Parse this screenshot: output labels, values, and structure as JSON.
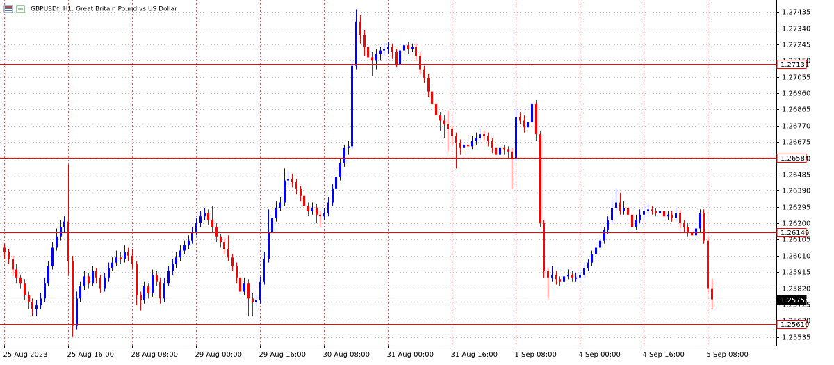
{
  "chart_data": {
    "type": "candlestick",
    "title": "GBPUSDf, H1:  Great Britain Pound vs US Dollar",
    "up_color": "#0000ff",
    "down_color": "#ff0000",
    "grid": true,
    "ylim": [
      1.25485,
      1.27505
    ],
    "yticks": [
      1.27435,
      {
        "value": 1.2734,
        "label": "1.27340"
      },
      1.27245,
      {
        "value": 1.2715,
        "label": "1.27150"
      },
      1.27055,
      {
        "value": 1.2696,
        "label": "1.26960"
      },
      1.26865,
      {
        "value": 1.2677,
        "label": "1.26770"
      },
      1.26675,
      {
        "value": 1.2658,
        "label": "1.26580"
      },
      1.26485,
      {
        "value": 1.2639,
        "label": "1.26390"
      },
      1.26295,
      {
        "value": 1.262,
        "label": "1.26200"
      },
      1.26105,
      {
        "value": 1.2601,
        "label": "1.26010"
      },
      1.25915,
      {
        "value": 1.2582,
        "label": "1.25820"
      },
      1.25725,
      {
        "value": 1.2563,
        "label": "1.25630"
      },
      1.25535
    ],
    "xticks": [
      "25 Aug 2023",
      "25 Aug 16:00",
      "28 Aug 08:00",
      "29 Aug 00:00",
      "29 Aug 16:00",
      "30 Aug 08:00",
      "31 Aug 00:00",
      "31 Aug 16:00",
      "1 Sep 08:00",
      "4 Sep 00:00",
      "4 Sep 16:00",
      "5 Sep 08:00"
    ],
    "xtick_every": 16,
    "levels": [
      {
        "value": 1.27131,
        "color": "#ff0000"
      },
      {
        "value": 1.26584,
        "color": "#ff0000"
      },
      {
        "value": 1.26149,
        "color": "#ff0000"
      },
      {
        "value": 1.25755,
        "color": "#808080"
      },
      {
        "value": 1.2561,
        "label": "1.25610",
        "color": "#ff0000"
      }
    ],
    "candles": [
      [
        1.2606,
        1.2608,
        1.2599,
        1.2603
      ],
      [
        1.2603,
        1.2605,
        1.2596,
        1.2599
      ],
      [
        1.2599,
        1.2601,
        1.259,
        1.2593
      ],
      [
        1.2593,
        1.2596,
        1.2585,
        1.2588
      ],
      [
        1.2588,
        1.259,
        1.2582,
        1.2585
      ],
      [
        1.2585,
        1.2587,
        1.2575,
        1.2578
      ],
      [
        1.2578,
        1.258,
        1.257,
        1.2574
      ],
      [
        1.2574,
        1.2576,
        1.2566,
        1.257
      ],
      [
        1.257,
        1.2575,
        1.2566,
        1.2572
      ],
      [
        1.2572,
        1.2579,
        1.257,
        1.2576
      ],
      [
        1.2576,
        1.2588,
        1.2574,
        1.2585
      ],
      [
        1.2585,
        1.2598,
        1.2583,
        1.2595
      ],
      [
        1.2595,
        1.2609,
        1.2593,
        1.2606
      ],
      [
        1.2606,
        1.2617,
        1.2604,
        1.2612
      ],
      [
        1.2612,
        1.2622,
        1.261,
        1.2618
      ],
      [
        1.2618,
        1.2624,
        1.2615,
        1.2621
      ],
      [
        1.2621,
        1.2654,
        1.259,
        1.2598
      ],
      [
        1.2598,
        1.2601,
        1.25535,
        1.256
      ],
      [
        1.256,
        1.258,
        1.2558,
        1.2576
      ],
      [
        1.2576,
        1.2586,
        1.2574,
        1.2583
      ],
      [
        1.2583,
        1.2592,
        1.2581,
        1.2589
      ],
      [
        1.2589,
        1.2591,
        1.2582,
        1.2585
      ],
      [
        1.2585,
        1.2595,
        1.2583,
        1.2592
      ],
      [
        1.2592,
        1.2594,
        1.2585,
        1.2588
      ],
      [
        1.2588,
        1.259,
        1.2579,
        1.2582
      ],
      [
        1.2582,
        1.2591,
        1.258,
        1.2588
      ],
      [
        1.2588,
        1.2597,
        1.2586,
        1.2594
      ],
      [
        1.2594,
        1.26,
        1.2592,
        1.2597
      ],
      [
        1.2597,
        1.2604,
        1.2595,
        1.26
      ],
      [
        1.26,
        1.2603,
        1.2596,
        1.2599
      ],
      [
        1.2599,
        1.2607,
        1.2597,
        1.2603
      ],
      [
        1.2603,
        1.2606,
        1.2598,
        1.2601
      ],
      [
        1.2601,
        1.2605,
        1.2593,
        1.2596
      ],
      [
        1.2596,
        1.2598,
        1.2572,
        1.2578
      ],
      [
        1.2578,
        1.258,
        1.2569,
        1.2575
      ],
      [
        1.2575,
        1.2586,
        1.2573,
        1.2583
      ],
      [
        1.2583,
        1.2585,
        1.2576,
        1.2579
      ],
      [
        1.2579,
        1.2593,
        1.2577,
        1.259
      ],
      [
        1.259,
        1.2592,
        1.2583,
        1.2586
      ],
      [
        1.2586,
        1.2588,
        1.2573,
        1.2576
      ],
      [
        1.2576,
        1.2588,
        1.2574,
        1.2585
      ],
      [
        1.2585,
        1.2595,
        1.2583,
        1.2592
      ],
      [
        1.2592,
        1.2599,
        1.259,
        1.2596
      ],
      [
        1.2596,
        1.2603,
        1.2594,
        1.26
      ],
      [
        1.26,
        1.2607,
        1.2598,
        1.2604
      ],
      [
        1.2604,
        1.261,
        1.2602,
        1.2607
      ],
      [
        1.2607,
        1.2613,
        1.2605,
        1.261
      ],
      [
        1.261,
        1.2618,
        1.2608,
        1.2615
      ],
      [
        1.2615,
        1.2623,
        1.2613,
        1.262
      ],
      [
        1.262,
        1.2627,
        1.2618,
        1.2624
      ],
      [
        1.2624,
        1.2629,
        1.2622,
        1.2626
      ],
      [
        1.2626,
        1.2628,
        1.2619,
        1.2622
      ],
      [
        1.2622,
        1.263,
        1.2615,
        1.2618
      ],
      [
        1.2618,
        1.262,
        1.2609,
        1.2612
      ],
      [
        1.2612,
        1.2614,
        1.2606,
        1.2609
      ],
      [
        1.2609,
        1.2611,
        1.2602,
        1.2605
      ],
      [
        1.2605,
        1.2613,
        1.2598,
        1.26
      ],
      [
        1.26,
        1.2602,
        1.2592,
        1.2595
      ],
      [
        1.2595,
        1.2597,
        1.2585,
        1.2588
      ],
      [
        1.2588,
        1.259,
        1.2577,
        1.258
      ],
      [
        1.258,
        1.2588,
        1.2578,
        1.2585
      ],
      [
        1.2585,
        1.2587,
        1.2566,
        1.2576
      ],
      [
        1.2576,
        1.2579,
        1.2566,
        1.2574
      ],
      [
        1.2574,
        1.2578,
        1.2572,
        1.2575
      ],
      [
        1.2575,
        1.2589,
        1.2573,
        1.2586
      ],
      [
        1.2586,
        1.2603,
        1.2584,
        1.2599
      ],
      [
        1.2599,
        1.2628,
        1.2597,
        1.2615
      ],
      [
        1.2615,
        1.2626,
        1.2613,
        1.2623
      ],
      [
        1.2623,
        1.2633,
        1.2621,
        1.2629
      ],
      [
        1.2629,
        1.2635,
        1.2627,
        1.2632
      ],
      [
        1.2632,
        1.2652,
        1.263,
        1.2645
      ],
      [
        1.2645,
        1.265,
        1.2642,
        1.2646
      ],
      [
        1.2646,
        1.2649,
        1.2641,
        1.2644
      ],
      [
        1.2644,
        1.2646,
        1.2637,
        1.264
      ],
      [
        1.264,
        1.2642,
        1.2633,
        1.2636
      ],
      [
        1.2636,
        1.2638,
        1.2627,
        1.263
      ],
      [
        1.263,
        1.2632,
        1.2624,
        1.2627
      ],
      [
        1.2627,
        1.2632,
        1.2625,
        1.2629
      ],
      [
        1.2629,
        1.2631,
        1.262,
        1.2625
      ],
      [
        1.2625,
        1.2627,
        1.2618,
        1.2624
      ],
      [
        1.2624,
        1.2629,
        1.2622,
        1.2626
      ],
      [
        1.2626,
        1.2635,
        1.2624,
        1.2632
      ],
      [
        1.2632,
        1.2643,
        1.263,
        1.264
      ],
      [
        1.264,
        1.265,
        1.2638,
        1.2647
      ],
      [
        1.2647,
        1.2658,
        1.2645,
        1.2655
      ],
      [
        1.2655,
        1.2666,
        1.2653,
        1.2664
      ],
      [
        1.2664,
        1.2668,
        1.266,
        1.2665
      ],
      [
        1.2665,
        1.2715,
        1.2663,
        1.2712
      ],
      [
        1.2712,
        1.2745,
        1.271,
        1.2738
      ],
      [
        1.2738,
        1.2742,
        1.2725,
        1.273
      ],
      [
        1.273,
        1.2733,
        1.2718,
        1.2723
      ],
      [
        1.2723,
        1.2725,
        1.271,
        1.2717
      ],
      [
        1.2717,
        1.272,
        1.2706,
        1.2715
      ],
      [
        1.2715,
        1.2722,
        1.271,
        1.2719
      ],
      [
        1.2719,
        1.2723,
        1.2715,
        1.2721
      ],
      [
        1.2721,
        1.2725,
        1.2718,
        1.2722
      ],
      [
        1.2722,
        1.2726,
        1.2719,
        1.2723
      ],
      [
        1.2723,
        1.2725,
        1.2716,
        1.272
      ],
      [
        1.272,
        1.2722,
        1.2711,
        1.2713
      ],
      [
        1.2713,
        1.2723,
        1.2711,
        1.2721
      ],
      [
        1.2721,
        1.2734,
        1.2719,
        1.2724
      ],
      [
        1.2724,
        1.2726,
        1.2719,
        1.2722
      ],
      [
        1.2722,
        1.2725,
        1.272,
        1.2723
      ],
      [
        1.2723,
        1.2725,
        1.2715,
        1.2718
      ],
      [
        1.2718,
        1.272,
        1.2707,
        1.271
      ],
      [
        1.271,
        1.2712,
        1.2702,
        1.2705
      ],
      [
        1.2705,
        1.2707,
        1.2694,
        1.2697
      ],
      [
        1.2697,
        1.2699,
        1.2687,
        1.269
      ],
      [
        1.269,
        1.2692,
        1.2679,
        1.2683
      ],
      [
        1.2683,
        1.2685,
        1.2674,
        1.268
      ],
      [
        1.268,
        1.2683,
        1.267,
        1.2678
      ],
      [
        1.2678,
        1.2686,
        1.2662,
        1.2675
      ],
      [
        1.2675,
        1.2677,
        1.2666,
        1.2671
      ],
      [
        1.2671,
        1.2673,
        1.2652,
        1.2667
      ],
      [
        1.2667,
        1.2669,
        1.266,
        1.2664
      ],
      [
        1.2664,
        1.2669,
        1.2662,
        1.2666
      ],
      [
        1.2666,
        1.267,
        1.2662,
        1.2665
      ],
      [
        1.2665,
        1.2671,
        1.2663,
        1.2668
      ],
      [
        1.2668,
        1.2673,
        1.2666,
        1.267
      ],
      [
        1.267,
        1.2675,
        1.2668,
        1.2672
      ],
      [
        1.2672,
        1.2674,
        1.2668,
        1.2671
      ],
      [
        1.2671,
        1.2673,
        1.2665,
        1.2668
      ],
      [
        1.2668,
        1.267,
        1.2661,
        1.2664
      ],
      [
        1.2664,
        1.2666,
        1.2657,
        1.266
      ],
      [
        1.266,
        1.2666,
        1.2658,
        1.2664
      ],
      [
        1.2664,
        1.2666,
        1.266,
        1.2663
      ],
      [
        1.2663,
        1.2665,
        1.2658,
        1.2662
      ],
      [
        1.2662,
        1.2664,
        1.264,
        1.2658
      ],
      [
        1.2658,
        1.2687,
        1.2656,
        1.2682
      ],
      [
        1.2682,
        1.2685,
        1.2678,
        1.268
      ],
      [
        1.268,
        1.2683,
        1.2673,
        1.2676
      ],
      [
        1.2676,
        1.2682,
        1.2674,
        1.2679
      ],
      [
        1.2679,
        1.2715,
        1.2677,
        1.269
      ],
      [
        1.269,
        1.2692,
        1.2668,
        1.2672
      ],
      [
        1.2672,
        1.2674,
        1.2618,
        1.262
      ],
      [
        1.262,
        1.2622,
        1.2588,
        1.2592
      ],
      [
        1.2592,
        1.2594,
        1.2576,
        1.2588
      ],
      [
        1.2588,
        1.2595,
        1.2586,
        1.259
      ],
      [
        1.259,
        1.2592,
        1.2584,
        1.2587
      ],
      [
        1.2587,
        1.2589,
        1.2583,
        1.2586
      ],
      [
        1.2586,
        1.2591,
        1.2584,
        1.2589
      ],
      [
        1.2589,
        1.2593,
        1.2587,
        1.259
      ],
      [
        1.259,
        1.2592,
        1.2586,
        1.2588
      ],
      [
        1.2588,
        1.2591,
        1.2586,
        1.2588
      ],
      [
        1.2588,
        1.2592,
        1.2586,
        1.259
      ],
      [
        1.259,
        1.2596,
        1.2588,
        1.2594
      ],
      [
        1.2594,
        1.2599,
        1.2592,
        1.2597
      ],
      [
        1.2597,
        1.2604,
        1.2595,
        1.2602
      ],
      [
        1.2602,
        1.2608,
        1.26,
        1.2606
      ],
      [
        1.2606,
        1.2612,
        1.2604,
        1.261
      ],
      [
        1.261,
        1.2618,
        1.2608,
        1.2616
      ],
      [
        1.2616,
        1.2624,
        1.2614,
        1.2622
      ],
      [
        1.2622,
        1.2634,
        1.262,
        1.2629
      ],
      [
        1.2629,
        1.264,
        1.2627,
        1.2632
      ],
      [
        1.2632,
        1.2638,
        1.2625,
        1.2627
      ],
      [
        1.2627,
        1.2633,
        1.2625,
        1.2629
      ],
      [
        1.2629,
        1.2631,
        1.2622,
        1.2625
      ],
      [
        1.2625,
        1.2627,
        1.2616,
        1.2618
      ],
      [
        1.2618,
        1.2625,
        1.2616,
        1.2622
      ],
      [
        1.2622,
        1.2628,
        1.262,
        1.2625
      ],
      [
        1.2625,
        1.263,
        1.2623,
        1.2627
      ],
      [
        1.2627,
        1.2631,
        1.2625,
        1.2628
      ],
      [
        1.2628,
        1.263,
        1.2625,
        1.2627
      ],
      [
        1.2627,
        1.2629,
        1.2624,
        1.2626
      ],
      [
        1.2626,
        1.2629,
        1.2624,
        1.2627
      ],
      [
        1.2627,
        1.2629,
        1.2622,
        1.2624
      ],
      [
        1.2624,
        1.2627,
        1.2622,
        1.2625
      ],
      [
        1.2625,
        1.2627,
        1.2621,
        1.2623
      ],
      [
        1.2623,
        1.2629,
        1.2621,
        1.2626
      ],
      [
        1.2626,
        1.2628,
        1.2617,
        1.262
      ],
      [
        1.262,
        1.2622,
        1.2615,
        1.2618
      ],
      [
        1.2618,
        1.262,
        1.2612,
        1.2615
      ],
      [
        1.2615,
        1.2617,
        1.261,
        1.2613
      ],
      [
        1.2613,
        1.2619,
        1.2611,
        1.2617
      ],
      [
        1.2617,
        1.2628,
        1.2615,
        1.2626
      ],
      [
        1.2626,
        1.2628,
        1.2608,
        1.261
      ],
      [
        1.261,
        1.2612,
        1.2579,
        1.2582
      ],
      [
        1.2582,
        1.2587,
        1.257,
        1.25755
      ]
    ]
  }
}
